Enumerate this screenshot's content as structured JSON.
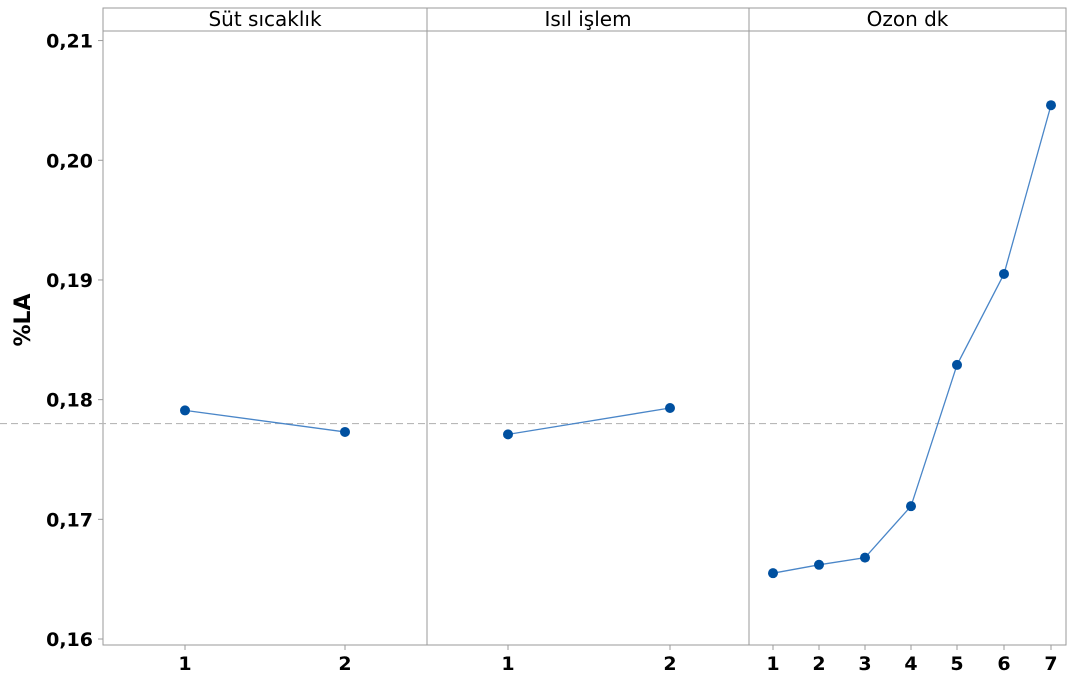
{
  "chart_data": {
    "type": "line",
    "title": "",
    "ylabel": "%LA",
    "ylim": [
      0.1595,
      0.2108
    ],
    "y_ticks": [
      "0,16",
      "0,17",
      "0,18",
      "0,19",
      "0,20",
      "0,21"
    ],
    "y_tick_values": [
      0.16,
      0.17,
      0.18,
      0.19,
      0.2,
      0.21
    ],
    "reference_line": 0.178,
    "grid": false,
    "line_color": "#4a86c8",
    "marker_color": "#0050a0",
    "panels": [
      {
        "title": "Süt sıcaklık",
        "x": [
          "1",
          "2"
        ],
        "values": [
          0.1791,
          0.1773
        ]
      },
      {
        "title": "Isıl işlem",
        "x": [
          "1",
          "2"
        ],
        "values": [
          0.1771,
          0.1793
        ]
      },
      {
        "title": "Ozon dk",
        "x": [
          "1",
          "2",
          "3",
          "4",
          "5",
          "6",
          "7"
        ],
        "values": [
          0.1655,
          0.1662,
          0.1668,
          0.1711,
          0.1829,
          0.1905,
          0.2046
        ]
      }
    ]
  }
}
